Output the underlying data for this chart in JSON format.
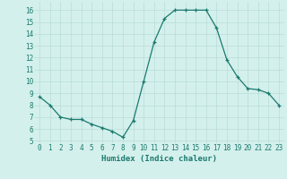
{
  "x": [
    0,
    1,
    2,
    3,
    4,
    5,
    6,
    7,
    8,
    9,
    10,
    11,
    12,
    13,
    14,
    15,
    16,
    17,
    18,
    19,
    20,
    21,
    22,
    23
  ],
  "y": [
    8.7,
    8.0,
    7.0,
    6.8,
    6.8,
    6.4,
    6.1,
    5.8,
    5.3,
    6.7,
    10.0,
    13.3,
    15.3,
    16.0,
    16.0,
    16.0,
    16.0,
    14.5,
    11.8,
    10.4,
    9.4,
    9.3,
    9.0,
    8.0
  ],
  "line_color": "#1a7a6e",
  "marker": "+",
  "markersize": 3,
  "linewidth": 0.9,
  "markeredgewidth": 0.9,
  "xlabel": "Humidex (Indice chaleur)",
  "xlim": [
    -0.5,
    23.5
  ],
  "ylim": [
    4.8,
    16.7
  ],
  "yticks": [
    5,
    6,
    7,
    8,
    9,
    10,
    11,
    12,
    13,
    14,
    15,
    16
  ],
  "xticks": [
    0,
    1,
    2,
    3,
    4,
    5,
    6,
    7,
    8,
    9,
    10,
    11,
    12,
    13,
    14,
    15,
    16,
    17,
    18,
    19,
    20,
    21,
    22,
    23
  ],
  "bg_color": "#d4f0ec",
  "grid_color": "#b8ddd8",
  "tick_color": "#1a7a6e",
  "label_color": "#1a7a6e",
  "xlabel_fontsize": 6.5,
  "tick_fontsize": 5.5
}
